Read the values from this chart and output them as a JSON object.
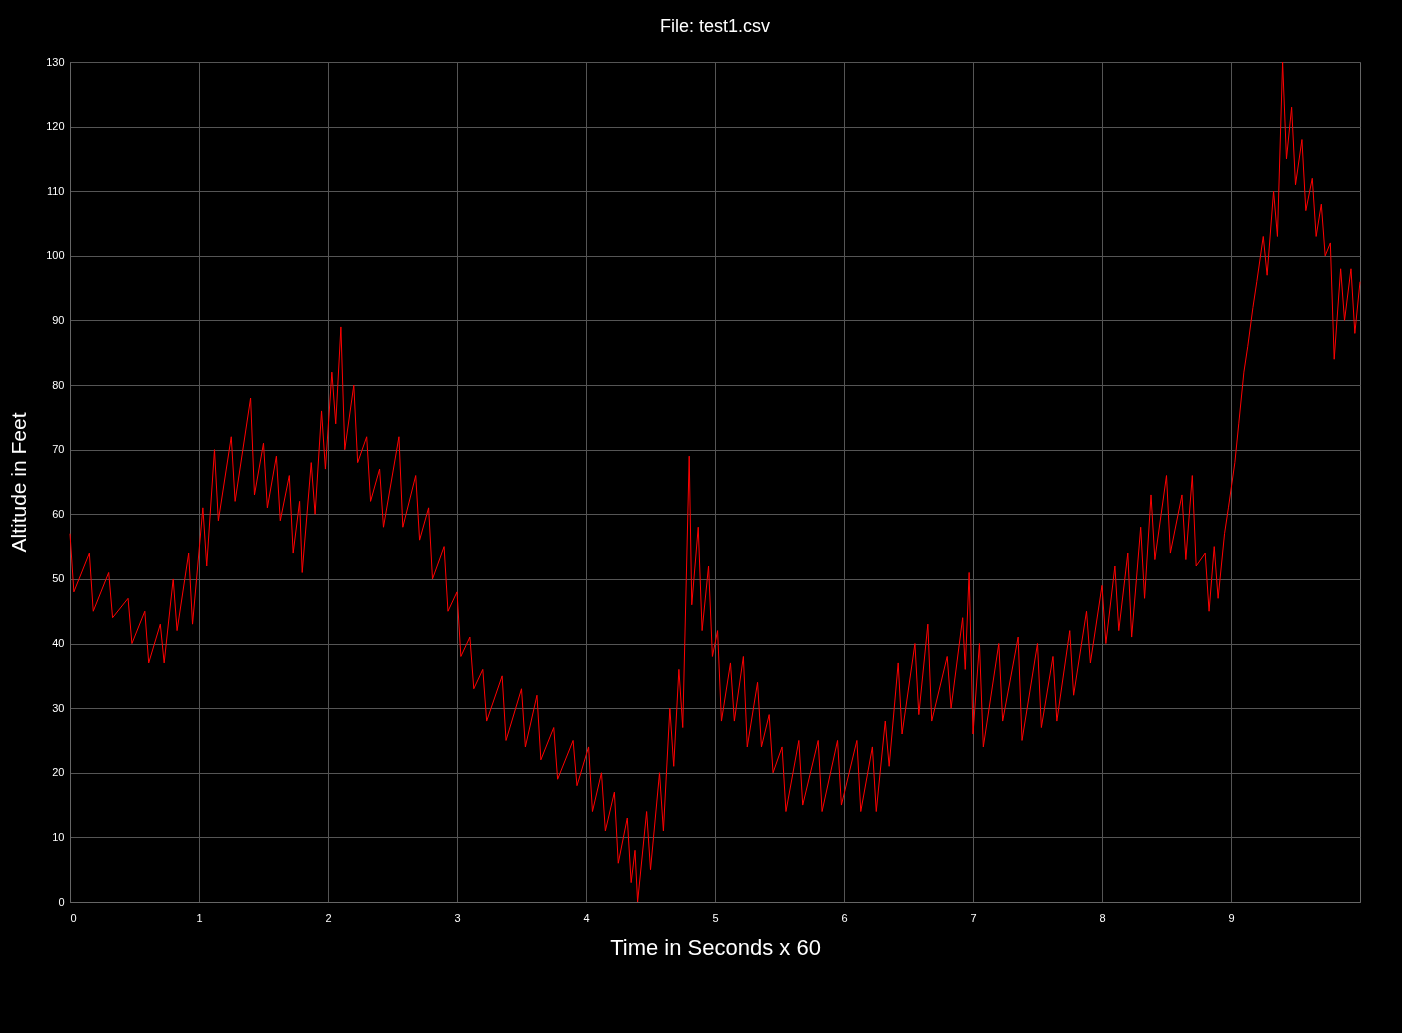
{
  "chart_data": {
    "type": "line",
    "title": "File: test1.csv",
    "xlabel": "Time in Seconds x 60",
    "ylabel": "Altitude in Feet",
    "xlim": [
      0,
      10
    ],
    "xticks": [
      0,
      1,
      2,
      3,
      4,
      5,
      6,
      7,
      8,
      9
    ],
    "ylim": [
      0,
      130
    ],
    "yticks": [
      0,
      10,
      20,
      30,
      40,
      50,
      60,
      70,
      80,
      90,
      100,
      110,
      120,
      130
    ],
    "grid": true,
    "marker": "none",
    "line_style": "solid",
    "series": [
      {
        "color": "#ff0000",
        "x": [
          0,
          0.03,
          0.15,
          0.18,
          0.3,
          0.33,
          0.45,
          0.48,
          0.58,
          0.61,
          0.7,
          0.73,
          0.8,
          0.83,
          0.92,
          0.95,
          1.03,
          1.06,
          1.12,
          1.15,
          1.25,
          1.28,
          1.4,
          1.43,
          1.5,
          1.53,
          1.6,
          1.63,
          1.7,
          1.73,
          1.78,
          1.8,
          1.87,
          1.9,
          1.95,
          1.98,
          2.03,
          2.06,
          2.1,
          2.13,
          2.2,
          2.23,
          2.3,
          2.33,
          2.4,
          2.43,
          2.55,
          2.58,
          2.68,
          2.71,
          2.78,
          2.81,
          2.9,
          2.93,
          3.0,
          3.03,
          3.1,
          3.13,
          3.2,
          3.23,
          3.35,
          3.38,
          3.5,
          3.53,
          3.62,
          3.65,
          3.75,
          3.78,
          3.9,
          3.93,
          4.02,
          4.05,
          4.12,
          4.15,
          4.22,
          4.25,
          4.32,
          4.35,
          4.38,
          4.4,
          4.47,
          4.5,
          4.57,
          4.6,
          4.65,
          4.68,
          4.72,
          4.75,
          4.8,
          4.82,
          4.87,
          4.9,
          4.95,
          4.98,
          5.02,
          5.05,
          5.12,
          5.15,
          5.22,
          5.25,
          5.33,
          5.36,
          5.42,
          5.45,
          5.52,
          5.55,
          5.65,
          5.68,
          5.8,
          5.83,
          5.95,
          5.98,
          6.1,
          6.13,
          6.22,
          6.25,
          6.32,
          6.35,
          6.42,
          6.45,
          6.55,
          6.58,
          6.65,
          6.68,
          6.8,
          6.83,
          6.92,
          6.94,
          6.97,
          7.0,
          7.05,
          7.08,
          7.2,
          7.23,
          7.35,
          7.38,
          7.5,
          7.53,
          7.62,
          7.65,
          7.75,
          7.78,
          7.88,
          7.91,
          8.0,
          8.03,
          8.1,
          8.13,
          8.2,
          8.23,
          8.3,
          8.33,
          8.38,
          8.41,
          8.5,
          8.53,
          8.62,
          8.65,
          8.7,
          8.73,
          8.8,
          8.83,
          8.87,
          8.9,
          8.95,
          8.98,
          9.03,
          9.06,
          9.1,
          9.13,
          9.17,
          9.2,
          9.25,
          9.28,
          9.33,
          9.36,
          9.4,
          9.43,
          9.47,
          9.5,
          9.55,
          9.58,
          9.63,
          9.66,
          9.7,
          9.73,
          9.77,
          9.8,
          9.85,
          9.88,
          9.93,
          9.96,
          10
        ],
        "values": [
          57,
          48,
          54,
          45,
          51,
          44,
          47,
          40,
          45,
          37,
          43,
          37,
          50,
          42,
          54,
          43,
          61,
          52,
          70,
          59,
          72,
          62,
          78,
          63,
          71,
          61,
          69,
          59,
          66,
          54,
          62,
          51,
          68,
          60,
          76,
          67,
          82,
          74,
          89,
          70,
          80,
          68,
          72,
          62,
          67,
          58,
          72,
          58,
          66,
          56,
          61,
          50,
          55,
          45,
          48,
          38,
          41,
          33,
          36,
          28,
          35,
          25,
          33,
          24,
          32,
          22,
          27,
          19,
          25,
          18,
          24,
          14,
          20,
          11,
          17,
          6,
          13,
          3,
          8,
          0,
          14,
          5,
          20,
          11,
          30,
          21,
          36,
          27,
          69,
          46,
          58,
          42,
          52,
          38,
          42,
          28,
          37,
          28,
          38,
          24,
          34,
          24,
          29,
          20,
          24,
          14,
          25,
          15,
          25,
          14,
          25,
          15,
          25,
          14,
          24,
          14,
          28,
          21,
          37,
          26,
          40,
          29,
          43,
          28,
          38,
          30,
          44,
          36,
          51,
          26,
          40,
          24,
          40,
          28,
          41,
          25,
          40,
          27,
          38,
          28,
          42,
          32,
          45,
          37,
          49,
          40,
          52,
          42,
          54,
          41,
          58,
          47,
          63,
          53,
          66,
          54,
          63,
          53,
          66,
          52,
          54,
          45,
          55,
          47,
          57,
          61,
          68,
          74,
          82,
          86,
          92,
          96,
          103,
          97,
          110,
          103,
          130,
          115,
          123,
          111,
          118,
          107,
          112,
          103,
          108,
          100,
          102,
          84,
          98,
          90,
          98,
          88,
          96
        ]
      }
    ]
  }
}
